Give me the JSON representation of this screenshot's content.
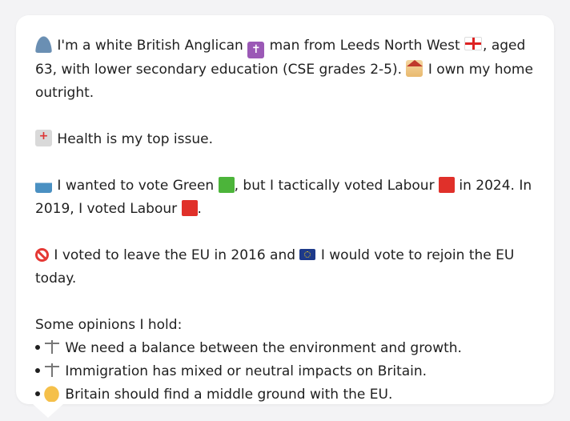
{
  "profile": {
    "intro_1": "I'm a white British Anglican",
    "intro_2": "man from Leeds North West",
    "intro_3": ", aged 63, with lower secondary education (CSE grades 2-5).",
    "intro_4": "I own my home outright.",
    "health": "Health is my top issue.",
    "vote_1": "I wanted to vote Green",
    "vote_2": ", but I tactically voted Labour",
    "vote_3": "in 2024. In 2019, I voted Labour",
    "vote_4": ".",
    "eu_1": "I voted to leave the EU in 2016 and",
    "eu_2": "I would vote to rejoin the EU today."
  },
  "opinions": {
    "heading": "Some opinions I hold:",
    "items": [
      "We need a balance between the environment and growth.",
      "Immigration has mixed or neutral impacts on Britain.",
      "Britain should find a middle ground with the EU."
    ]
  },
  "icons": {
    "person": "bust-in-silhouette-icon",
    "religion": "latin-cross-icon",
    "region_flag": "england-flag-icon",
    "home": "house-icon",
    "health": "hospital-icon",
    "ballot": "ballot-box-icon",
    "green_party": "green-square-icon",
    "labour_party": "red-square-icon",
    "leave": "no-entry-icon",
    "eu": "eu-flag-icon",
    "balance": "balance-scale-icon",
    "handshake": "handshake-icon"
  },
  "colors": {
    "green_party": "#4cb43a",
    "labour_party": "#e0302a"
  }
}
